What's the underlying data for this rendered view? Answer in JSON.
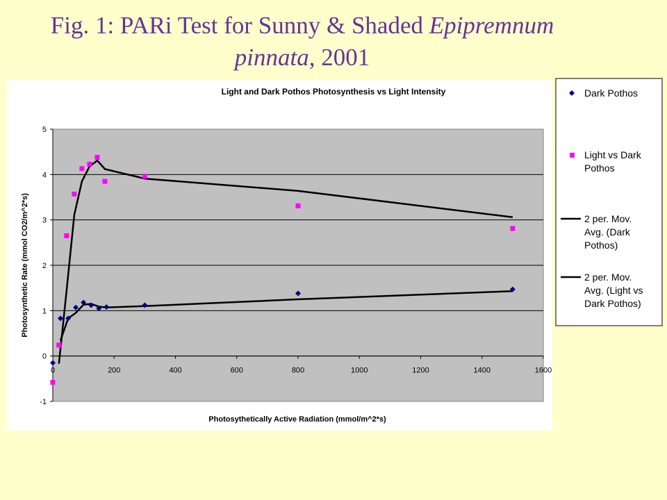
{
  "slide": {
    "title_part1": "Fig. 1: PARi Test for Sunny & Shaded ",
    "title_italic1": "Epipremnum",
    "title_italic2": "pinnata",
    "title_part2": ", 2001"
  },
  "colors": {
    "background": "#ffffcc",
    "title": "#663399",
    "plot_area": "#c0c0c0",
    "dark_series": "#000080",
    "light_series": "#ff00ff",
    "trend": "#000000"
  },
  "chart_data": {
    "type": "scatter",
    "title": "Light and Dark Pothos Photosynthesis vs Light Intensity",
    "xlabel": "Photosythetically Active Radiation (mmol/m^2*s)",
    "ylabel": "Photosynthetic Rate (mmol CO2/m^2*s)",
    "xlim": [
      0,
      1600
    ],
    "ylim": [
      -1,
      5
    ],
    "x_ticks": [
      "0",
      "200",
      "400",
      "600",
      "800",
      "1000",
      "1200",
      "1400",
      "1600"
    ],
    "y_ticks": [
      "-1",
      "0",
      "1",
      "2",
      "3",
      "4",
      "5"
    ],
    "grid": "horizontal",
    "legend_position": "right",
    "series": [
      {
        "name": "Dark Pothos",
        "marker": "diamond",
        "points": [
          [
            0,
            -0.15
          ],
          [
            25,
            0.83
          ],
          [
            50,
            0.83
          ],
          [
            75,
            1.07
          ],
          [
            100,
            1.18
          ],
          [
            125,
            1.12
          ],
          [
            150,
            1.05
          ],
          [
            175,
            1.08
          ],
          [
            300,
            1.12
          ],
          [
            800,
            1.38
          ],
          [
            1500,
            1.47
          ]
        ]
      },
      {
        "name": "Light vs Dark Pothos",
        "marker": "square",
        "points": [
          [
            0,
            -0.58
          ],
          [
            20,
            0.24
          ],
          [
            45,
            2.65
          ],
          [
            70,
            3.57
          ],
          [
            95,
            4.13
          ],
          [
            120,
            4.23
          ],
          [
            145,
            4.38
          ],
          [
            170,
            3.85
          ],
          [
            300,
            3.96
          ],
          [
            800,
            3.31
          ],
          [
            1500,
            2.81
          ]
        ]
      }
    ],
    "trendlines": [
      {
        "name": "2 per. Mov. Avg. (Dark Pothos)",
        "points": [
          [
            25,
            0.34
          ],
          [
            50,
            0.83
          ],
          [
            75,
            0.95
          ],
          [
            100,
            1.13
          ],
          [
            125,
            1.15
          ],
          [
            150,
            1.09
          ],
          [
            175,
            1.07
          ],
          [
            300,
            1.1
          ],
          [
            800,
            1.25
          ],
          [
            1500,
            1.43
          ]
        ]
      },
      {
        "name": "2 per. Mov. Avg. (Light vs Dark Pothos)",
        "points": [
          [
            20,
            -0.17
          ],
          [
            45,
            1.45
          ],
          [
            70,
            3.11
          ],
          [
            95,
            3.85
          ],
          [
            120,
            4.18
          ],
          [
            145,
            4.31
          ],
          [
            170,
            4.12
          ],
          [
            300,
            3.91
          ],
          [
            800,
            3.64
          ],
          [
            1500,
            3.06
          ]
        ]
      }
    ],
    "legend": {
      "dark": "Dark Pothos",
      "light": [
        "Light vs Dark",
        "Pothos"
      ],
      "mov_dark": [
        "2 per. Mov.",
        "Avg. (Dark",
        "Pothos)"
      ],
      "mov_light": [
        "2 per. Mov.",
        "Avg. (Light vs",
        "Dark Pothos)"
      ]
    }
  }
}
